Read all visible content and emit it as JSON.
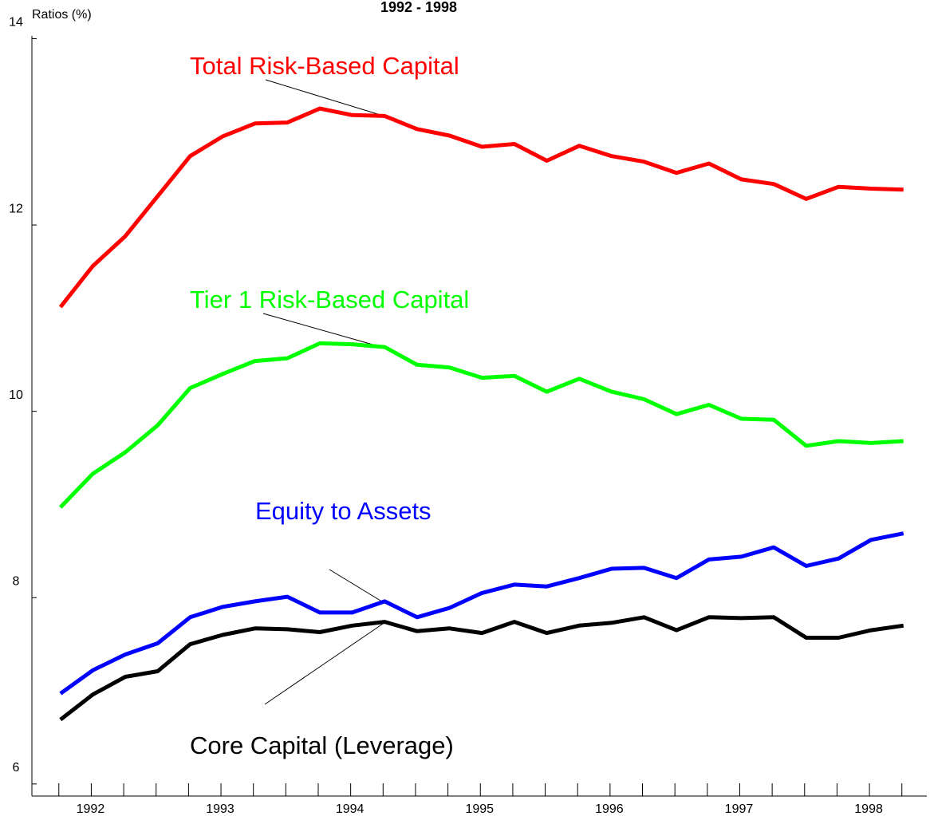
{
  "chart_data": {
    "type": "line",
    "title": "1992 - 1998",
    "y_label": "Ratios (%)",
    "x": [
      1992.25,
      1992.5,
      1992.75,
      1993.0,
      1993.25,
      1993.5,
      1993.75,
      1994.0,
      1994.25,
      1994.5,
      1994.75,
      1995.0,
      1995.25,
      1995.5,
      1995.75,
      1996.0,
      1996.25,
      1996.5,
      1996.75,
      1997.0,
      1997.25,
      1997.5,
      1997.75,
      1998.0,
      1998.25,
      1998.5,
      1998.75
    ],
    "xlim": [
      1992.03,
      1998.93
    ],
    "xticks": [
      {
        "value": 1992.5,
        "label": "1992"
      },
      {
        "value": 1993.5,
        "label": "1993"
      },
      {
        "value": 1994.5,
        "label": "1994"
      },
      {
        "value": 1995.5,
        "label": "1995"
      },
      {
        "value": 1996.5,
        "label": "1996"
      },
      {
        "value": 1997.5,
        "label": "1997"
      },
      {
        "value": 1998.5,
        "label": "1998"
      }
    ],
    "ylim": [
      5.87,
      14.03
    ],
    "yticks": [
      6,
      8,
      10,
      12,
      14
    ],
    "series": [
      {
        "name": "Total Risk-Based Capital",
        "color": "#ff0000",
        "values": [
          11.12,
          11.56,
          11.88,
          12.31,
          12.74,
          12.95,
          13.09,
          13.1,
          13.25,
          13.18,
          13.17,
          13.03,
          12.96,
          12.84,
          12.87,
          12.69,
          12.85,
          12.74,
          12.68,
          12.56,
          12.66,
          12.49,
          12.44,
          12.28,
          12.41,
          12.39,
          12.38
        ]
      },
      {
        "name": "Tier 1 Risk-Based Capital",
        "color": "#00ff00",
        "values": [
          8.97,
          9.33,
          9.56,
          9.85,
          10.25,
          10.4,
          10.54,
          10.57,
          10.73,
          10.72,
          10.69,
          10.5,
          10.47,
          10.36,
          10.38,
          10.21,
          10.35,
          10.21,
          10.13,
          9.97,
          10.07,
          9.92,
          9.91,
          9.63,
          9.68,
          9.66,
          9.68
        ]
      },
      {
        "name": "Equity to Assets",
        "color": "#0000ff",
        "values": [
          6.97,
          7.22,
          7.39,
          7.51,
          7.79,
          7.9,
          7.96,
          8.01,
          7.84,
          7.84,
          7.96,
          7.79,
          7.89,
          8.05,
          8.14,
          8.12,
          8.21,
          8.31,
          8.32,
          8.21,
          8.41,
          8.44,
          8.54,
          8.34,
          8.42,
          8.62,
          8.69
        ]
      },
      {
        "name": "Core Capital (Leverage)",
        "color": "#000000",
        "values": [
          6.69,
          6.96,
          7.15,
          7.21,
          7.5,
          7.6,
          7.67,
          7.66,
          7.63,
          7.7,
          7.74,
          7.64,
          7.67,
          7.62,
          7.74,
          7.62,
          7.7,
          7.73,
          7.79,
          7.65,
          7.79,
          7.78,
          7.79,
          7.57,
          7.57,
          7.65,
          7.7
        ]
      }
    ]
  }
}
